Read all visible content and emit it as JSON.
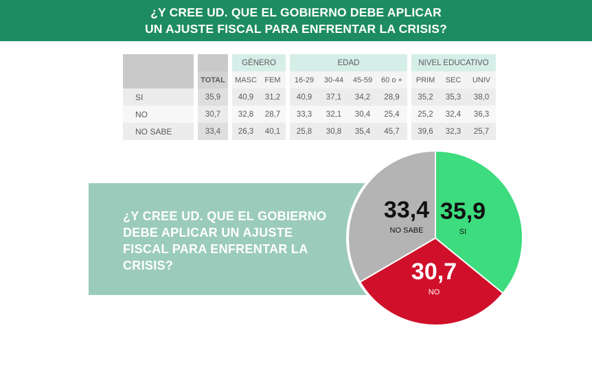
{
  "header": {
    "line1": "¿Y CREE UD. QUE EL GOBIERNO DEBE APLICAR",
    "line2": "UN AJUSTE FISCAL PARA ENFRENTAR LA CRISIS?"
  },
  "table": {
    "groups": {
      "genero": "GÉNERO",
      "edad": "EDAD",
      "nivel": "NIVEL EDUCATIVO"
    },
    "columns": [
      "TOTAL",
      "MASC",
      "FEM",
      "16-29",
      "30-44",
      "45-59",
      "60 o +",
      "PRIM",
      "SEC",
      "UNIV"
    ],
    "rows": [
      {
        "label": "SI",
        "values": [
          "35,9",
          "40,9",
          "31,2",
          "40,9",
          "37,1",
          "34,2",
          "28,9",
          "35,2",
          "35,3",
          "38,0"
        ]
      },
      {
        "label": "NO",
        "values": [
          "30,7",
          "32,8",
          "28,7",
          "33,3",
          "32,1",
          "30,4",
          "25,4",
          "25,2",
          "32,4",
          "36,3"
        ]
      },
      {
        "label": "NO SABE",
        "values": [
          "33,4",
          "26,3",
          "40,1",
          "25,8",
          "30,8",
          "35,4",
          "45,7",
          "39,6",
          "32,3",
          "25,7"
        ]
      }
    ]
  },
  "question_box": {
    "text": "¿Y CREE UD. QUE EL GOBIERNO DEBE APLICAR UN AJUSTE FISCAL PARA ENFRENTAR LA CRISIS?"
  },
  "chart_data": {
    "type": "pie",
    "slices": [
      {
        "label": "SI",
        "value": 35.9,
        "display": "35,9",
        "color": "#3ddc7e"
      },
      {
        "label": "NO",
        "value": 30.7,
        "display": "30,7",
        "color": "#d0102a"
      },
      {
        "label": "NO SABE",
        "value": 33.4,
        "display": "33,4",
        "color": "#b4b4b4"
      }
    ]
  },
  "colors": {
    "banner": "#1e8c63",
    "question_box": "#9bcbbb",
    "group_header": "#d6eee8"
  }
}
